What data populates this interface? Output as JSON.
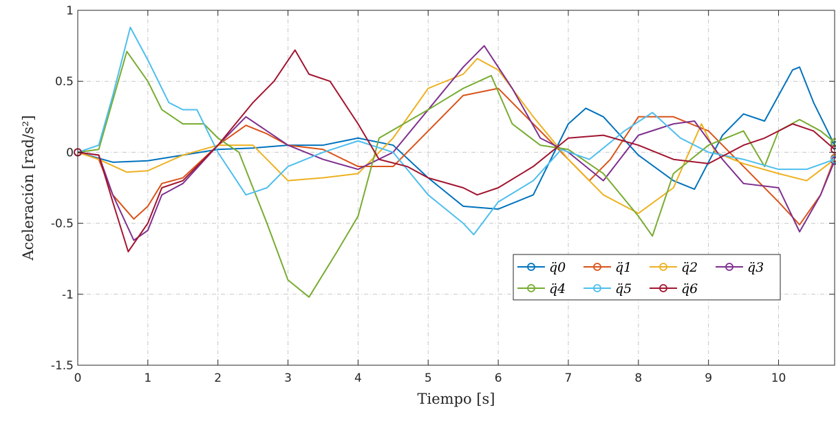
{
  "chart_data": {
    "type": "line",
    "xlabel": "Tiempo [s]",
    "ylabel": "Aceleración [rad/s²]",
    "xlim": [
      0,
      10.8
    ],
    "ylim": [
      -1.5,
      1
    ],
    "x_ticks": [
      0,
      1,
      2,
      3,
      4,
      5,
      6,
      7,
      8,
      9,
      10
    ],
    "x_tick_labels": [
      "0",
      "1",
      "2",
      "3",
      "4",
      "5",
      "6",
      "7",
      "8",
      "9",
      "10"
    ],
    "y_ticks": [
      -1.5,
      -1,
      -0.5,
      0,
      0.5,
      1
    ],
    "y_tick_labels": [
      "-1.5",
      "-1",
      "-0.5",
      "0",
      "0.5",
      "1"
    ],
    "grid": true,
    "legend_position": "lower-right",
    "legend_columns": 4,
    "series": [
      {
        "name": "q̈0",
        "color": "#0072BD",
        "points": [
          [
            0,
            0
          ],
          [
            0.5,
            -0.07
          ],
          [
            1,
            -0.06
          ],
          [
            1.5,
            -0.02
          ],
          [
            2,
            0.02
          ],
          [
            2.5,
            0.03
          ],
          [
            3,
            0.05
          ],
          [
            3.5,
            0.05
          ],
          [
            4,
            0.1
          ],
          [
            4.5,
            0.05
          ],
          [
            5,
            -0.18
          ],
          [
            5.5,
            -0.38
          ],
          [
            6,
            -0.4
          ],
          [
            6.5,
            -0.3
          ],
          [
            7,
            0.2
          ],
          [
            7.25,
            0.31
          ],
          [
            7.5,
            0.25
          ],
          [
            8,
            -0.02
          ],
          [
            8.5,
            -0.2
          ],
          [
            8.8,
            -0.26
          ],
          [
            9.2,
            0.12
          ],
          [
            9.5,
            0.27
          ],
          [
            9.8,
            0.22
          ],
          [
            10.2,
            0.58
          ],
          [
            10.3,
            0.6
          ],
          [
            10.5,
            0.35
          ],
          [
            10.8,
            0.05
          ]
        ]
      },
      {
        "name": "q̈1",
        "color": "#D95319",
        "points": [
          [
            0,
            0
          ],
          [
            0.3,
            -0.05
          ],
          [
            0.5,
            -0.3
          ],
          [
            0.8,
            -0.47
          ],
          [
            1,
            -0.38
          ],
          [
            1.2,
            -0.22
          ],
          [
            1.5,
            -0.18
          ],
          [
            2,
            0.05
          ],
          [
            2.4,
            0.19
          ],
          [
            2.7,
            0.13
          ],
          [
            3,
            0.05
          ],
          [
            3.5,
            0.02
          ],
          [
            4,
            -0.1
          ],
          [
            4.5,
            -0.1
          ],
          [
            5,
            0.15
          ],
          [
            5.5,
            0.4
          ],
          [
            6,
            0.45
          ],
          [
            6.5,
            0.2
          ],
          [
            7,
            -0.05
          ],
          [
            7.3,
            -0.2
          ],
          [
            7.6,
            -0.05
          ],
          [
            8,
            0.25
          ],
          [
            8.5,
            0.25
          ],
          [
            9,
            0.15
          ],
          [
            9.5,
            -0.1
          ],
          [
            10,
            -0.35
          ],
          [
            10.3,
            -0.51
          ],
          [
            10.6,
            -0.3
          ],
          [
            10.8,
            -0.04
          ]
        ]
      },
      {
        "name": "q̈2",
        "color": "#EDB120",
        "points": [
          [
            0,
            0
          ],
          [
            0.3,
            -0.05
          ],
          [
            0.7,
            -0.14
          ],
          [
            1,
            -0.13
          ],
          [
            1.5,
            -0.02
          ],
          [
            2,
            0.05
          ],
          [
            2.5,
            0.05
          ],
          [
            3,
            -0.2
          ],
          [
            3.5,
            -0.18
          ],
          [
            4,
            -0.15
          ],
          [
            4.5,
            0.1
          ],
          [
            5,
            0.45
          ],
          [
            5.5,
            0.55
          ],
          [
            5.7,
            0.66
          ],
          [
            6,
            0.58
          ],
          [
            6.5,
            0.25
          ],
          [
            7,
            -0.05
          ],
          [
            7.5,
            -0.3
          ],
          [
            8,
            -0.43
          ],
          [
            8.5,
            -0.25
          ],
          [
            8.9,
            0.2
          ],
          [
            9.1,
            0
          ],
          [
            9.5,
            -0.08
          ],
          [
            10,
            -0.15
          ],
          [
            10.4,
            -0.2
          ],
          [
            10.8,
            -0.05
          ]
        ]
      },
      {
        "name": "q̈3",
        "color": "#7E2F8E",
        "points": [
          [
            0,
            0
          ],
          [
            0.3,
            -0.02
          ],
          [
            0.5,
            -0.3
          ],
          [
            0.8,
            -0.62
          ],
          [
            1,
            -0.55
          ],
          [
            1.2,
            -0.3
          ],
          [
            1.5,
            -0.22
          ],
          [
            2,
            0.05
          ],
          [
            2.4,
            0.25
          ],
          [
            2.7,
            0.15
          ],
          [
            3,
            0.05
          ],
          [
            3.5,
            -0.05
          ],
          [
            4,
            -0.12
          ],
          [
            4.5,
            0
          ],
          [
            5,
            0.3
          ],
          [
            5.5,
            0.6
          ],
          [
            5.8,
            0.75
          ],
          [
            6.2,
            0.45
          ],
          [
            6.6,
            0.1
          ],
          [
            7,
            0
          ],
          [
            7.5,
            -0.2
          ],
          [
            8,
            0.12
          ],
          [
            8.5,
            0.2
          ],
          [
            8.8,
            0.22
          ],
          [
            9.2,
            -0.05
          ],
          [
            9.5,
            -0.22
          ],
          [
            10,
            -0.25
          ],
          [
            10.3,
            -0.56
          ],
          [
            10.6,
            -0.3
          ],
          [
            10.8,
            -0.06
          ]
        ]
      },
      {
        "name": "q̈4",
        "color": "#77AC30",
        "points": [
          [
            0,
            0
          ],
          [
            0.3,
            0.02
          ],
          [
            0.7,
            0.71
          ],
          [
            1,
            0.5
          ],
          [
            1.2,
            0.3
          ],
          [
            1.5,
            0.2
          ],
          [
            1.8,
            0.2
          ],
          [
            2,
            0.1
          ],
          [
            2.3,
            0
          ],
          [
            2.7,
            -0.5
          ],
          [
            3,
            -0.9
          ],
          [
            3.3,
            -1.02
          ],
          [
            3.7,
            -0.7
          ],
          [
            4,
            -0.45
          ],
          [
            4.3,
            0.1
          ],
          [
            5,
            0.3
          ],
          [
            5.5,
            0.45
          ],
          [
            5.9,
            0.54
          ],
          [
            6.2,
            0.2
          ],
          [
            6.6,
            0.05
          ],
          [
            7,
            0.02
          ],
          [
            7.5,
            -0.15
          ],
          [
            8,
            -0.45
          ],
          [
            8.2,
            -0.59
          ],
          [
            8.5,
            -0.15
          ],
          [
            9,
            0.05
          ],
          [
            9.5,
            0.15
          ],
          [
            9.8,
            -0.1
          ],
          [
            10,
            0.15
          ],
          [
            10.3,
            0.23
          ],
          [
            10.6,
            0.15
          ],
          [
            10.8,
            0.07
          ]
        ]
      },
      {
        "name": "q̈5",
        "color": "#4DBEEE",
        "points": [
          [
            0,
            0
          ],
          [
            0.3,
            0.05
          ],
          [
            0.5,
            0.4
          ],
          [
            0.75,
            0.88
          ],
          [
            1,
            0.65
          ],
          [
            1.3,
            0.35
          ],
          [
            1.5,
            0.3
          ],
          [
            1.7,
            0.3
          ],
          [
            2,
            0
          ],
          [
            2.4,
            -0.3
          ],
          [
            2.7,
            -0.25
          ],
          [
            3,
            -0.1
          ],
          [
            3.5,
            0
          ],
          [
            4,
            0.08
          ],
          [
            4.5,
            0
          ],
          [
            5,
            -0.3
          ],
          [
            5.5,
            -0.5
          ],
          [
            5.65,
            -0.58
          ],
          [
            6,
            -0.35
          ],
          [
            6.5,
            -0.2
          ],
          [
            6.9,
            0.02
          ],
          [
            7.3,
            -0.05
          ],
          [
            7.8,
            0.15
          ],
          [
            8.2,
            0.28
          ],
          [
            8.6,
            0.1
          ],
          [
            9,
            0
          ],
          [
            9.5,
            -0.05
          ],
          [
            10,
            -0.12
          ],
          [
            10.4,
            -0.12
          ],
          [
            10.8,
            -0.05
          ]
        ]
      },
      {
        "name": "q̈6",
        "color": "#A2142F",
        "points": [
          [
            0,
            0
          ],
          [
            0.3,
            -0.02
          ],
          [
            0.5,
            -0.35
          ],
          [
            0.72,
            -0.7
          ],
          [
            1,
            -0.5
          ],
          [
            1.2,
            -0.25
          ],
          [
            1.5,
            -0.2
          ],
          [
            2,
            0.05
          ],
          [
            2.5,
            0.35
          ],
          [
            2.8,
            0.5
          ],
          [
            3.1,
            0.72
          ],
          [
            3.3,
            0.55
          ],
          [
            3.6,
            0.5
          ],
          [
            3.8,
            0.35
          ],
          [
            4,
            0.2
          ],
          [
            4.3,
            -0.05
          ],
          [
            4.7,
            -0.1
          ],
          [
            5,
            -0.18
          ],
          [
            5.5,
            -0.25
          ],
          [
            5.7,
            -0.3
          ],
          [
            6,
            -0.25
          ],
          [
            6.5,
            -0.1
          ],
          [
            7,
            0.1
          ],
          [
            7.5,
            0.12
          ],
          [
            8,
            0.05
          ],
          [
            8.5,
            -0.05
          ],
          [
            9,
            -0.08
          ],
          [
            9.5,
            0.05
          ],
          [
            9.8,
            0.1
          ],
          [
            10.2,
            0.2
          ],
          [
            10.5,
            0.15
          ],
          [
            10.8,
            0.02
          ]
        ]
      }
    ]
  }
}
